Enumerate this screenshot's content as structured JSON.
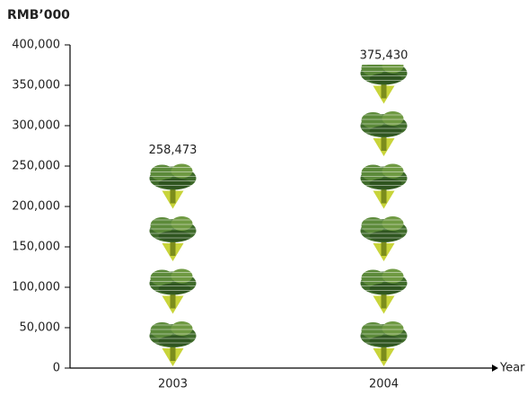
{
  "chart_data": {
    "type": "pictograph",
    "y_axis_title": "RMB’000",
    "x_axis_title": "Year",
    "categories": [
      "2003",
      "2004"
    ],
    "values": [
      258473,
      375430
    ],
    "value_labels": [
      "258,473",
      "375,430"
    ],
    "ylim": [
      0,
      400000
    ],
    "yticks": [
      0,
      {
        "value": 50000,
        "label": "50,000"
      },
      {
        "value": 100000,
        "label": "100,000"
      },
      {
        "value": 150000,
        "label": "150,000"
      },
      {
        "value": 200000,
        "label": "200,000"
      },
      {
        "value": 250000,
        "label": "250,000"
      },
      {
        "value": 300000,
        "label": "300,000"
      },
      {
        "value": 350000,
        "label": "350,000"
      },
      {
        "value": 400000,
        "label": "400,000"
      }
    ]
  }
}
